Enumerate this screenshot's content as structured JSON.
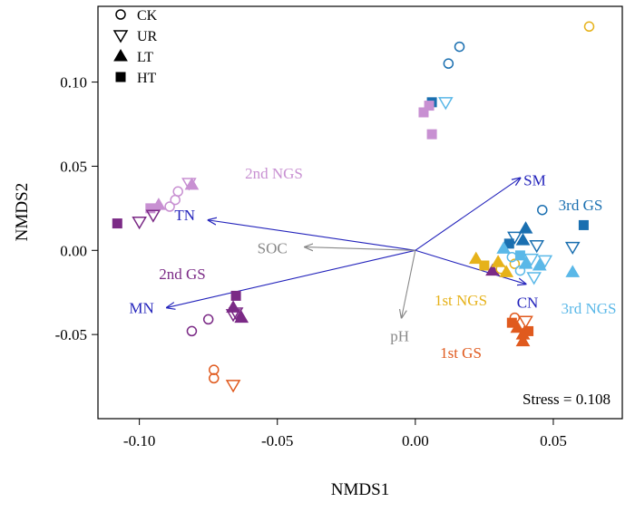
{
  "chart_data": {
    "type": "scatter",
    "title": "",
    "xlabel": "NMDS1",
    "ylabel": "NMDS2",
    "xlim": [
      -0.115,
      0.075
    ],
    "ylim": [
      -0.1,
      0.145
    ],
    "xticks": [
      "-0.10",
      "-0.05",
      "0.00",
      "0.05"
    ],
    "xtick_values": [
      -0.1,
      -0.05,
      0.0,
      0.05
    ],
    "yticks": [
      "-0.05",
      "0.00",
      "0.05",
      "0.10"
    ],
    "ytick_values": [
      -0.05,
      0.0,
      0.05,
      0.1
    ],
    "annotation": "Stress = 0.108",
    "legend": {
      "position": "top-left",
      "entries": [
        {
          "label": "CK",
          "marker": "circle-open"
        },
        {
          "label": "UR",
          "marker": "triangle-down-open"
        },
        {
          "label": "LT",
          "marker": "triangle-up-filled"
        },
        {
          "label": "HT",
          "marker": "square-filled"
        }
      ]
    },
    "groups": [
      {
        "label": "2nd NGS",
        "color": "#c890d2"
      },
      {
        "label": "2nd GS",
        "color": "#7b2a86"
      },
      {
        "label": "1st GS",
        "color": "#e05a1e"
      },
      {
        "label": "1st NGS",
        "color": "#e6b21a"
      },
      {
        "label": "3rd NGS",
        "color": "#5ab8e8"
      },
      {
        "label": "3rd GS",
        "color": "#1a6fb0"
      }
    ],
    "vectors": [
      {
        "label": "SM",
        "x": 0.038,
        "y": 0.043,
        "color": "#2222bb"
      },
      {
        "label": "TN",
        "x": -0.075,
        "y": 0.018,
        "color": "#2222bb"
      },
      {
        "label": "MN",
        "x": -0.09,
        "y": -0.034,
        "color": "#2222bb"
      },
      {
        "label": "CN",
        "x": 0.04,
        "y": -0.02,
        "color": "#2222bb"
      },
      {
        "label": "SOC",
        "x": -0.04,
        "y": 0.002,
        "color": "#888888"
      },
      {
        "label": "pH",
        "x": -0.005,
        "y": -0.04,
        "color": "#888888"
      }
    ],
    "points": [
      {
        "x": 0.063,
        "y": 0.133,
        "shape": "circle-open",
        "color": "#e6b21a"
      },
      {
        "x": 0.016,
        "y": 0.121,
        "shape": "circle-open",
        "color": "#1a6fb0"
      },
      {
        "x": 0.012,
        "y": 0.111,
        "shape": "circle-open",
        "color": "#1a6fb0"
      },
      {
        "x": 0.011,
        "y": 0.088,
        "shape": "triangle-down-open",
        "color": "#5ab8e8"
      },
      {
        "x": 0.006,
        "y": 0.088,
        "shape": "square-filled",
        "color": "#1a6fb0"
      },
      {
        "x": 0.003,
        "y": 0.082,
        "shape": "square-filled",
        "color": "#c890d2"
      },
      {
        "x": 0.005,
        "y": 0.086,
        "shape": "square-filled",
        "color": "#c890d2"
      },
      {
        "x": 0.006,
        "y": 0.069,
        "shape": "square-filled",
        "color": "#c890d2"
      },
      {
        "x": -0.082,
        "y": 0.04,
        "shape": "triangle-down-open",
        "color": "#c890d2"
      },
      {
        "x": -0.081,
        "y": 0.039,
        "shape": "triangle-up-filled",
        "color": "#c890d2"
      },
      {
        "x": -0.086,
        "y": 0.035,
        "shape": "circle-open",
        "color": "#c890d2"
      },
      {
        "x": -0.087,
        "y": 0.03,
        "shape": "circle-open",
        "color": "#c890d2"
      },
      {
        "x": -0.089,
        "y": 0.026,
        "shape": "circle-open",
        "color": "#c890d2"
      },
      {
        "x": -0.093,
        "y": 0.027,
        "shape": "triangle-up-filled",
        "color": "#c890d2"
      },
      {
        "x": -0.096,
        "y": 0.025,
        "shape": "square-filled",
        "color": "#c890d2"
      },
      {
        "x": -0.095,
        "y": 0.021,
        "shape": "triangle-down-open",
        "color": "#7b2a86"
      },
      {
        "x": -0.1,
        "y": 0.017,
        "shape": "triangle-down-open",
        "color": "#7b2a86"
      },
      {
        "x": -0.108,
        "y": 0.016,
        "shape": "square-filled",
        "color": "#7b2a86"
      },
      {
        "x": -0.065,
        "y": -0.027,
        "shape": "square-filled",
        "color": "#7b2a86"
      },
      {
        "x": -0.066,
        "y": -0.034,
        "shape": "triangle-up-filled",
        "color": "#7b2a86"
      },
      {
        "x": -0.065,
        "y": -0.037,
        "shape": "triangle-down-open",
        "color": "#7b2a86"
      },
      {
        "x": -0.063,
        "y": -0.04,
        "shape": "triangle-up-filled",
        "color": "#7b2a86"
      },
      {
        "x": -0.066,
        "y": -0.038,
        "shape": "triangle-down-open",
        "color": "#7b2a86"
      },
      {
        "x": -0.075,
        "y": -0.041,
        "shape": "circle-open",
        "color": "#7b2a86"
      },
      {
        "x": -0.081,
        "y": -0.048,
        "shape": "circle-open",
        "color": "#7b2a86"
      },
      {
        "x": -0.073,
        "y": -0.071,
        "shape": "circle-open",
        "color": "#e05a1e"
      },
      {
        "x": -0.073,
        "y": -0.076,
        "shape": "circle-open",
        "color": "#e05a1e"
      },
      {
        "x": -0.066,
        "y": -0.08,
        "shape": "triangle-down-open",
        "color": "#e05a1e"
      },
      {
        "x": 0.036,
        "y": -0.04,
        "shape": "circle-open",
        "color": "#e05a1e"
      },
      {
        "x": 0.04,
        "y": -0.042,
        "shape": "triangle-down-open",
        "color": "#e05a1e"
      },
      {
        "x": 0.035,
        "y": -0.043,
        "shape": "square-filled",
        "color": "#e05a1e"
      },
      {
        "x": 0.037,
        "y": -0.046,
        "shape": "triangle-up-filled",
        "color": "#e05a1e"
      },
      {
        "x": 0.041,
        "y": -0.048,
        "shape": "square-filled",
        "color": "#e05a1e"
      },
      {
        "x": 0.039,
        "y": -0.05,
        "shape": "triangle-up-filled",
        "color": "#e05a1e"
      },
      {
        "x": 0.039,
        "y": -0.054,
        "shape": "triangle-up-filled",
        "color": "#e05a1e"
      },
      {
        "x": 0.022,
        "y": -0.005,
        "shape": "triangle-up-filled",
        "color": "#e6b21a"
      },
      {
        "x": 0.025,
        "y": -0.009,
        "shape": "square-filled",
        "color": "#e6b21a"
      },
      {
        "x": 0.028,
        "y": -0.012,
        "shape": "triangle-up-filled",
        "color": "#7b2a86"
      },
      {
        "x": 0.031,
        "y": -0.011,
        "shape": "circle-open",
        "color": "#e6b21a"
      },
      {
        "x": 0.033,
        "y": -0.013,
        "shape": "triangle-up-filled",
        "color": "#e6b21a"
      },
      {
        "x": 0.036,
        "y": -0.008,
        "shape": "circle-open",
        "color": "#e6b21a"
      },
      {
        "x": 0.03,
        "y": -0.007,
        "shape": "triangle-up-filled",
        "color": "#e6b21a"
      },
      {
        "x": 0.034,
        "y": 0.004,
        "shape": "square-filled",
        "color": "#1a6fb0"
      },
      {
        "x": 0.036,
        "y": 0.008,
        "shape": "triangle-down-open",
        "color": "#1a6fb0"
      },
      {
        "x": 0.04,
        "y": 0.013,
        "shape": "triangle-up-filled",
        "color": "#1a6fb0"
      },
      {
        "x": 0.039,
        "y": 0.006,
        "shape": "triangle-up-filled",
        "color": "#1a6fb0"
      },
      {
        "x": 0.046,
        "y": 0.024,
        "shape": "circle-open",
        "color": "#1a6fb0"
      },
      {
        "x": 0.044,
        "y": 0.003,
        "shape": "triangle-down-open",
        "color": "#1a6fb0"
      },
      {
        "x": 0.061,
        "y": 0.015,
        "shape": "square-filled",
        "color": "#1a6fb0"
      },
      {
        "x": 0.057,
        "y": 0.002,
        "shape": "triangle-down-open",
        "color": "#1a6fb0"
      },
      {
        "x": 0.057,
        "y": -0.013,
        "shape": "triangle-up-filled",
        "color": "#5ab8e8"
      },
      {
        "x": 0.032,
        "y": 0.001,
        "shape": "triangle-up-filled",
        "color": "#5ab8e8"
      },
      {
        "x": 0.035,
        "y": -0.004,
        "shape": "circle-open",
        "color": "#5ab8e8"
      },
      {
        "x": 0.038,
        "y": -0.003,
        "shape": "square-filled",
        "color": "#5ab8e8"
      },
      {
        "x": 0.04,
        "y": -0.008,
        "shape": "triangle-up-filled",
        "color": "#5ab8e8"
      },
      {
        "x": 0.042,
        "y": -0.005,
        "shape": "triangle-down-open",
        "color": "#5ab8e8"
      },
      {
        "x": 0.045,
        "y": -0.009,
        "shape": "triangle-up-filled",
        "color": "#5ab8e8"
      },
      {
        "x": 0.047,
        "y": -0.006,
        "shape": "triangle-down-open",
        "color": "#5ab8e8"
      },
      {
        "x": 0.043,
        "y": -0.016,
        "shape": "triangle-down-open",
        "color": "#5ab8e8"
      },
      {
        "x": 0.038,
        "y": -0.012,
        "shape": "circle-open",
        "color": "#5ab8e8"
      }
    ]
  }
}
